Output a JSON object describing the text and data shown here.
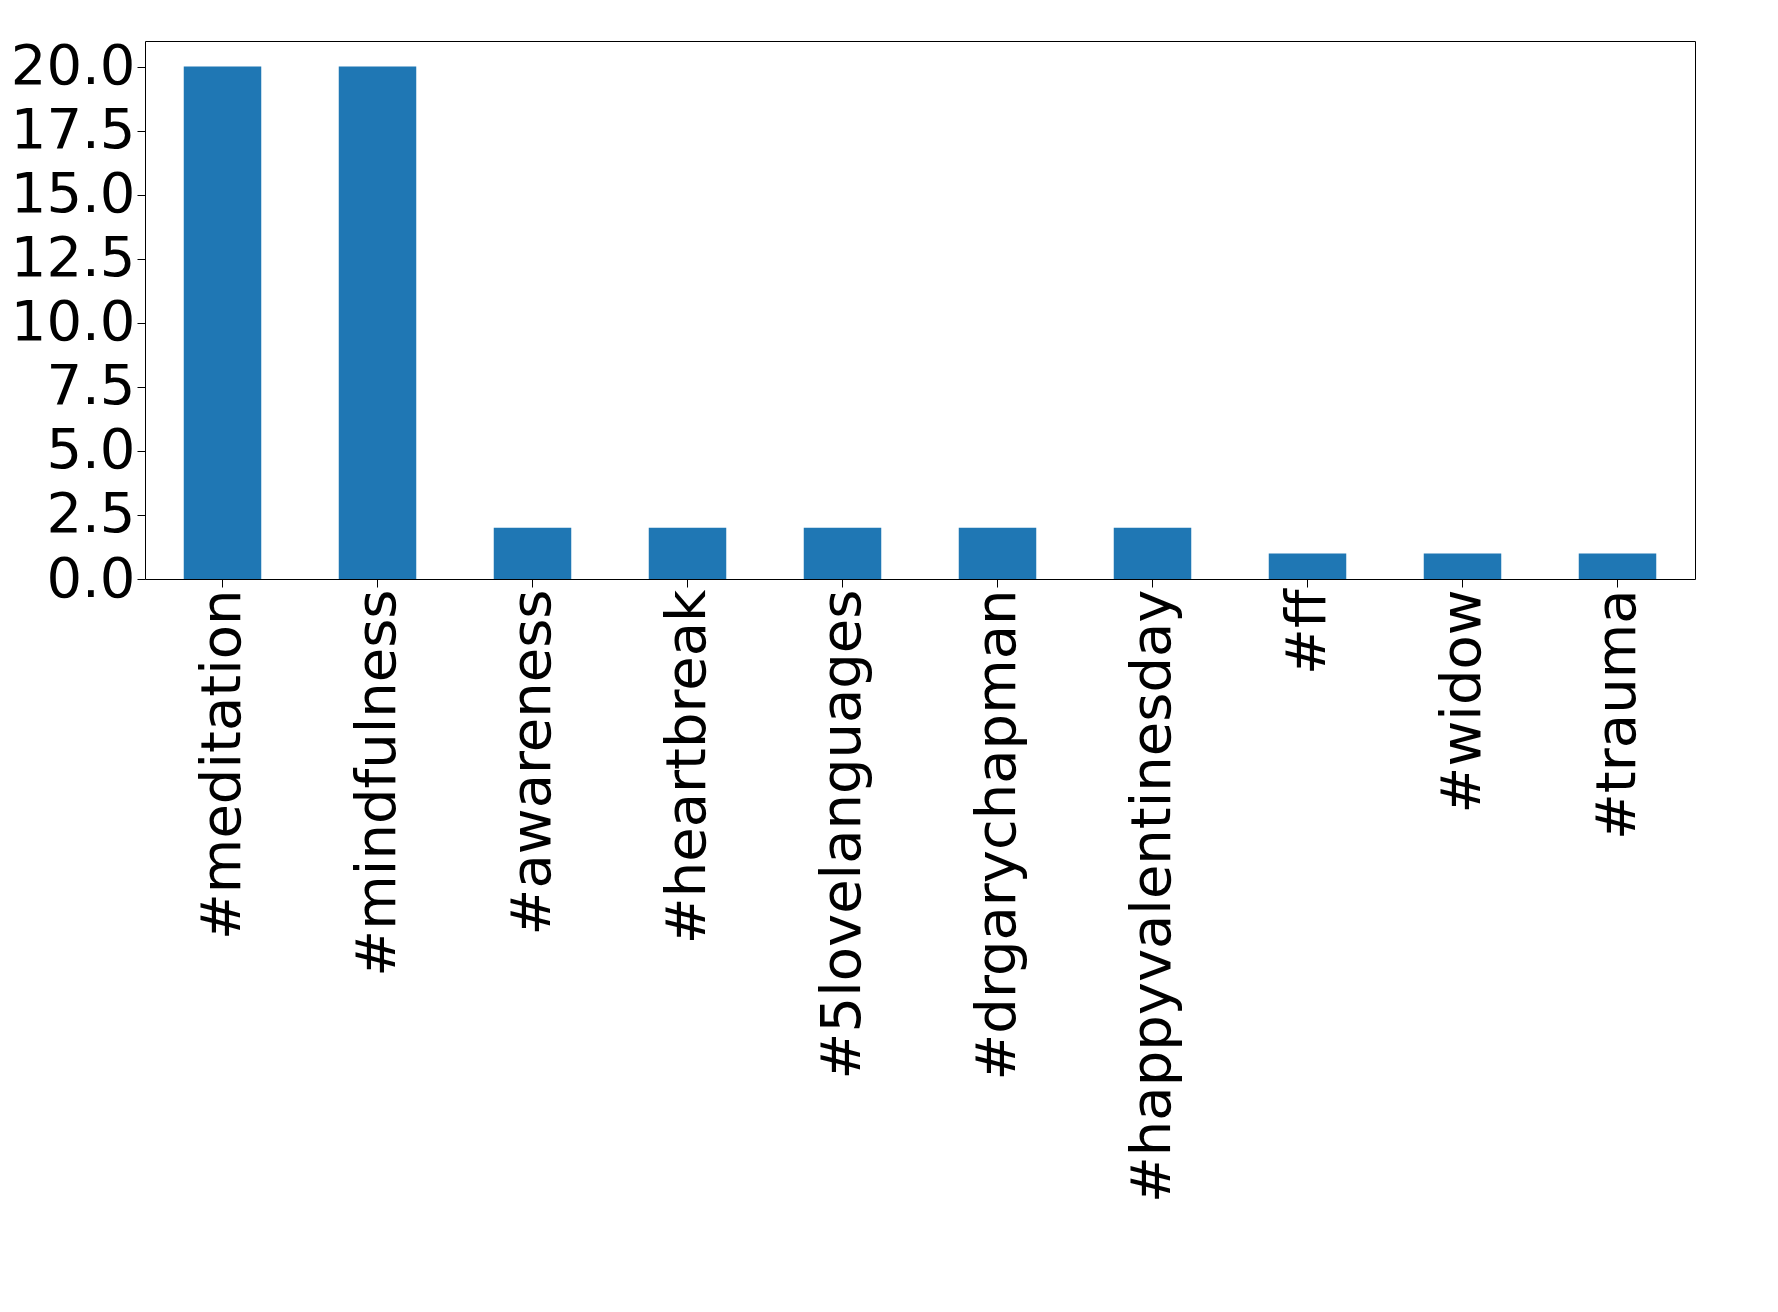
{
  "chart_data": {
    "type": "bar",
    "categories": [
      "#meditation",
      "#mindfulness",
      "#awareness",
      "#heartbreak",
      "#5lovelanguages",
      "#drgarychapman",
      "#happyvalentinesday",
      "#ff",
      "#widow",
      "#trauma"
    ],
    "values": [
      20,
      20,
      2,
      2,
      2,
      2,
      2,
      1,
      1,
      1
    ],
    "color": "#1f77b4",
    "ylim": [
      0,
      21
    ],
    "yticks": [
      {
        "value": 0,
        "label": "0.0"
      },
      {
        "value": 2.5,
        "label": "2.5"
      },
      {
        "value": 5,
        "label": "5.0"
      },
      {
        "value": 7.5,
        "label": "7.5"
      },
      {
        "value": 10,
        "label": "10.0"
      },
      {
        "value": 12.5,
        "label": "12.5"
      },
      {
        "value": 15,
        "label": "15.0"
      },
      {
        "value": 17.5,
        "label": "17.5"
      },
      {
        "value": 20,
        "label": "20.0"
      }
    ],
    "grid": false
  }
}
